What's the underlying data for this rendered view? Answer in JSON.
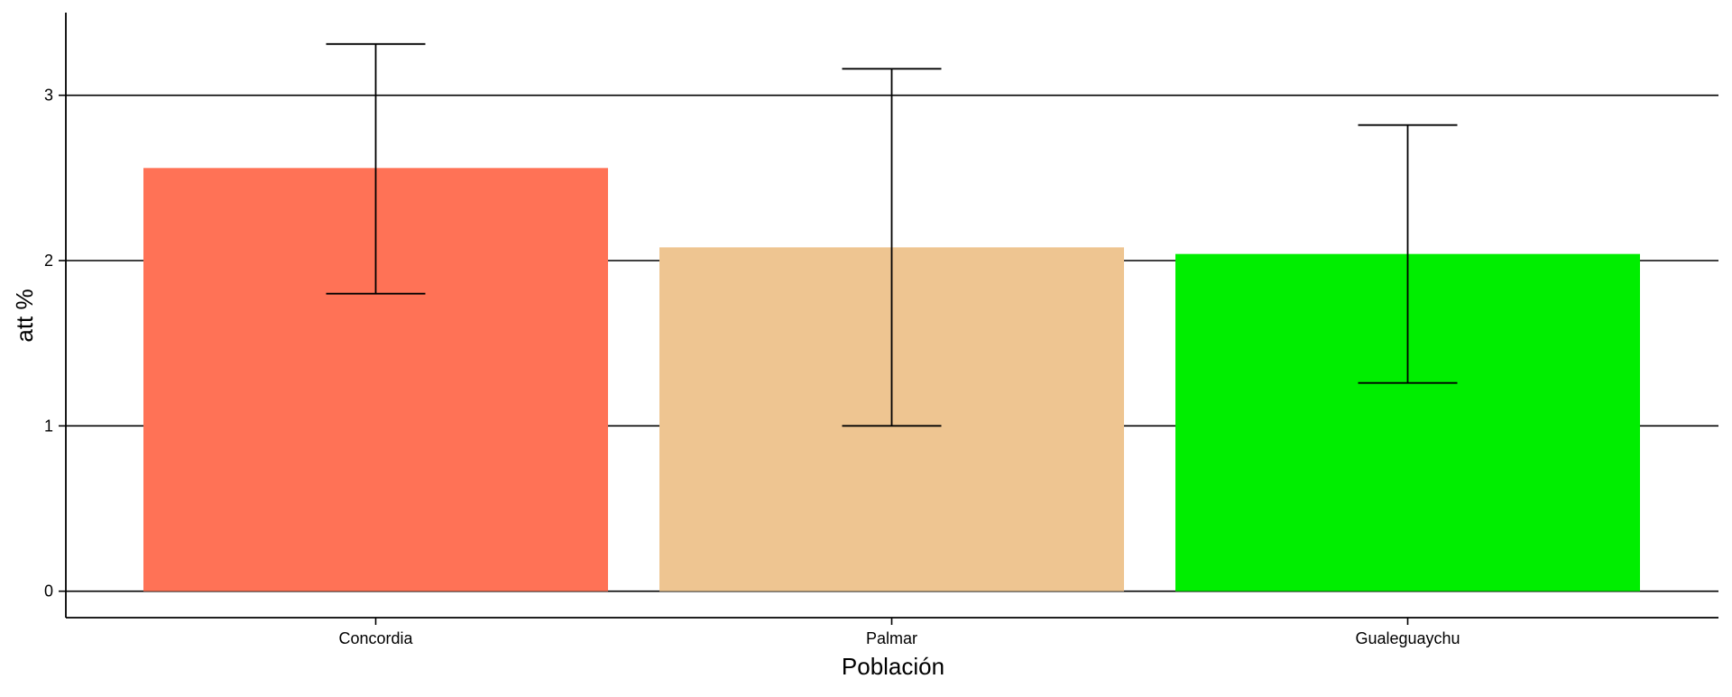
{
  "chart_data": {
    "type": "bar",
    "title": "",
    "xlabel": "Población",
    "ylabel": "att %",
    "categories": [
      "Concordia",
      "Palmar",
      "Gualeguaychu"
    ],
    "values": [
      2.56,
      2.08,
      2.04
    ],
    "error_low": [
      1.8,
      1.0,
      1.26
    ],
    "error_high": [
      3.31,
      3.16,
      2.82
    ],
    "ylim": [
      -0.16,
      3.5
    ],
    "yticks": [
      0,
      1,
      2,
      3
    ],
    "grid": "horizontal major",
    "legend": "none",
    "colors": [
      "#FF7256",
      "#EEC591",
      "#00EE00"
    ]
  }
}
